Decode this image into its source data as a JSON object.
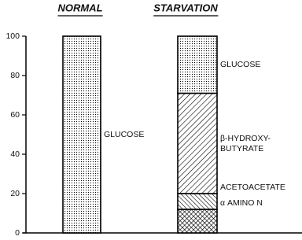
{
  "chart_data": {
    "type": "stacked-bar",
    "title_labels": [
      "NORMAL",
      "STARVATION"
    ],
    "categories": [
      "NORMAL",
      "STARVATION"
    ],
    "series": [
      {
        "name": "α AMINO N",
        "color": "#000000",
        "pattern": "crosshatch",
        "values": [
          null,
          12
        ]
      },
      {
        "name": "ACETOACETATE",
        "color": "#000000",
        "pattern": "backslash",
        "values": [
          null,
          8
        ]
      },
      {
        "name": "β-HYDROXY- BUTYRATE",
        "color": "#000000",
        "pattern": "slash",
        "values": [
          null,
          51
        ]
      },
      {
        "name": "GLUCOSE",
        "color": "#000000",
        "pattern": "dots",
        "values": [
          100,
          29
        ]
      }
    ],
    "ylim": [
      0,
      100
    ],
    "yticks": [
      0,
      20,
      40,
      60,
      80,
      100
    ]
  }
}
